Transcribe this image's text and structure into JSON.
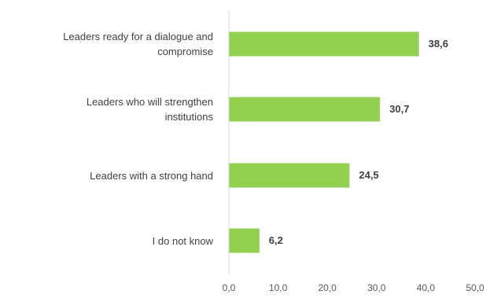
{
  "chart_data": {
    "type": "bar",
    "orientation": "horizontal",
    "categories": [
      [
        "Leaders ready for a dialogue and",
        "compromise"
      ],
      [
        "Leaders who will strengthen",
        "institutions"
      ],
      [
        "Leaders with a strong hand"
      ],
      [
        "I do not know"
      ]
    ],
    "values": [
      38.6,
      30.7,
      24.5,
      6.2
    ],
    "value_labels": [
      "38,6",
      "30,7",
      "24,5",
      "6,2"
    ],
    "x_ticks": [
      0,
      10,
      20,
      30,
      40,
      50
    ],
    "x_tick_labels": [
      "0,0",
      "10,0",
      "20,0",
      "30,0",
      "40,0",
      "50,0"
    ],
    "xlim": [
      0,
      50
    ],
    "title": "",
    "xlabel": "",
    "ylabel": "",
    "grid": false,
    "legend": "none",
    "bar_color": "#92d050",
    "axis_color": "#d9d9d9"
  }
}
